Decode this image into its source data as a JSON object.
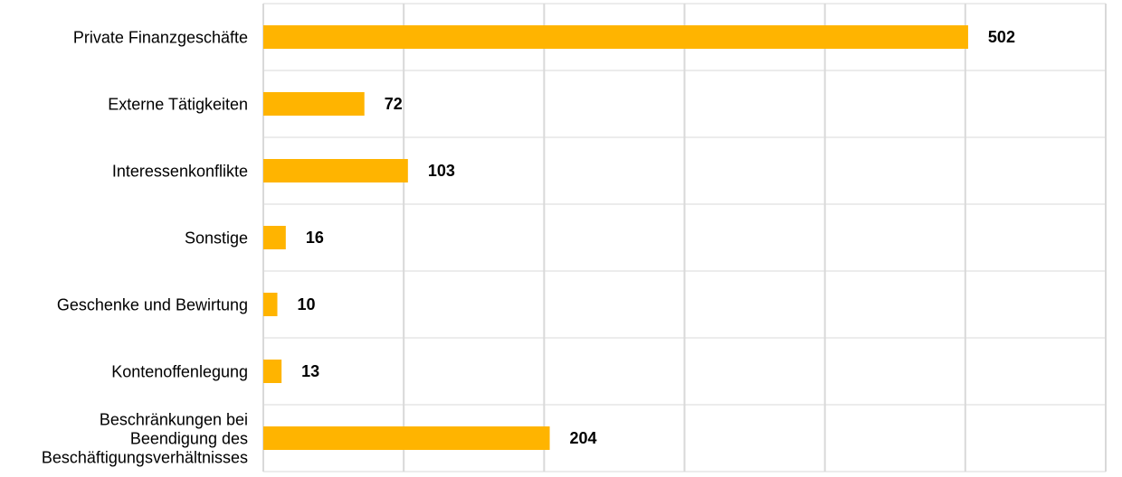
{
  "chart_data": {
    "type": "barh",
    "categories": [
      "Private Finanzgeschäfte",
      "Externe Tätigkeiten",
      "Interessenkonflikte",
      "Sonstige",
      "Geschenke und Bewirtung",
      "Kontenoffenlegung",
      "Beschränkungen bei Beendigung des Beschäftigungsverhältnisses"
    ],
    "values": [
      502,
      72,
      103,
      16,
      10,
      13,
      204
    ],
    "color": "#ffb400",
    "xlim": [
      0,
      600
    ],
    "xticks": [
      0,
      100,
      200,
      300,
      400,
      500,
      600
    ],
    "grid": true
  }
}
